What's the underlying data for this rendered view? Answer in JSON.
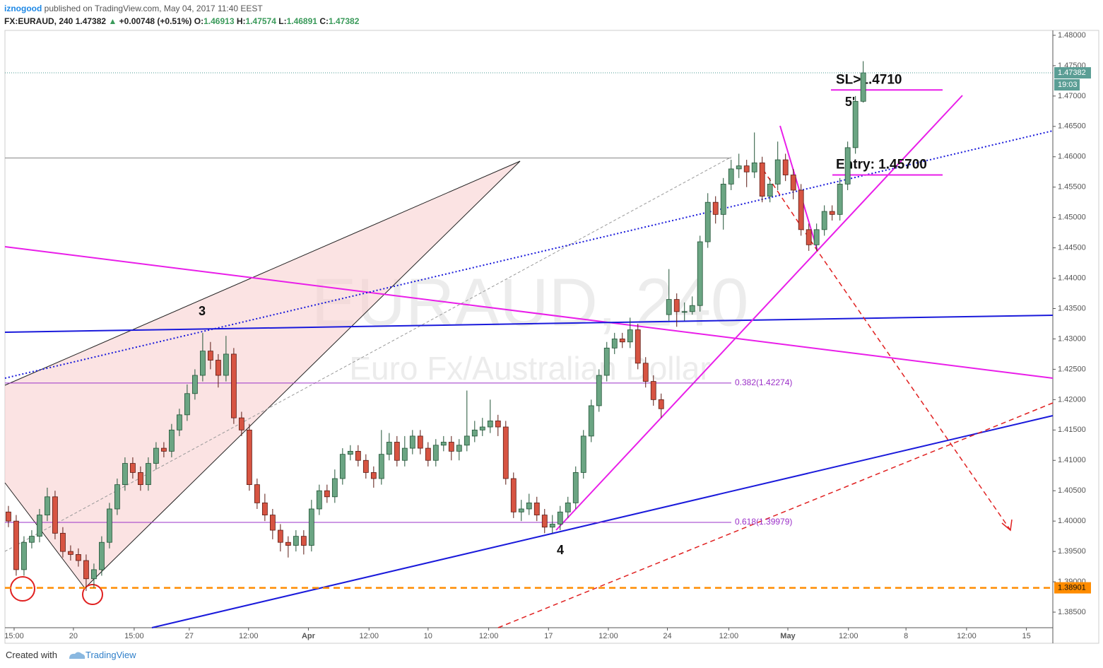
{
  "header": {
    "author": "iznogood",
    "published": "published on TradingView.com, May 04, 2017 11:40 EEST",
    "symbol": "FX:EURAUD, 240",
    "change": "+0.00748 (+0.51%)",
    "o": "O:",
    "h": "H:",
    "l": "L:",
    "c": "C:"
  },
  "footer": {
    "created": "Created with",
    "brand": "TradingView"
  },
  "chart_data": {
    "type": "candlestick",
    "watermark": "EURAUD, 240",
    "subtitle": "Euro Fx/Australian Dollar",
    "annotations": [
      "3",
      "4",
      "5'"
    ],
    "countdown": "19:03",
    "up_color": "#6ba583",
    "down_color": "#d75442",
    "ylim": [
      1.38244,
      1.48081
    ],
    "yticks": [
      {
        "value": 1.385,
        "label": "1.38500"
      },
      {
        "value": 1.39,
        "label": "1.39000"
      },
      {
        "value": 1.395,
        "label": "1.39500"
      },
      {
        "value": 1.4,
        "label": "1.40000"
      },
      {
        "value": 1.405,
        "label": "1.40500"
      },
      {
        "value": 1.41,
        "label": "1.41000"
      },
      {
        "value": 1.415,
        "label": "1.41500"
      },
      {
        "value": 1.42,
        "label": "1.42000"
      },
      {
        "value": 1.425,
        "label": "1.42500"
      },
      {
        "value": 1.43,
        "label": "1.43000"
      },
      {
        "value": 1.435,
        "label": "1.43500"
      },
      {
        "value": 1.44,
        "label": "1.44000"
      },
      {
        "value": 1.445,
        "label": "1.44500"
      },
      {
        "value": 1.45,
        "label": "1.45000"
      },
      {
        "value": 1.455,
        "label": "1.45500"
      },
      {
        "value": 1.46,
        "label": "1.46000"
      },
      {
        "value": 1.465,
        "label": "1.46500"
      },
      {
        "value": 1.47,
        "label": "1.47000"
      },
      {
        "value": 1.475,
        "label": "1.47500"
      },
      {
        "value": 1.48,
        "label": "1.48000"
      }
    ],
    "xlim": [
      -0.45,
      134.4
    ],
    "xticks": [
      {
        "value": 0.73,
        "label": "15:00"
      },
      {
        "value": 8.36,
        "label": "20"
      },
      {
        "value": 16.18,
        "label": "15:00"
      },
      {
        "value": 23.27,
        "label": "27"
      },
      {
        "value": 30.9,
        "label": "12:00"
      },
      {
        "value": 38.6,
        "label": "Apr"
      },
      {
        "value": 46.4,
        "label": "12:00"
      },
      {
        "value": 54,
        "label": "10"
      },
      {
        "value": 61.8,
        "label": "12:00"
      },
      {
        "value": 69.5,
        "label": "17"
      },
      {
        "value": 77.2,
        "label": "12:00"
      },
      {
        "value": 84.8,
        "label": "24"
      },
      {
        "value": 92.7,
        "label": "12:00"
      },
      {
        "value": 100.3,
        "label": "May"
      },
      {
        "value": 108.1,
        "label": "12:00"
      },
      {
        "value": 115.5,
        "label": "8"
      },
      {
        "value": 123.3,
        "label": "12:00"
      },
      {
        "value": 131,
        "label": "15"
      }
    ],
    "levels": [
      {
        "value": 1.4598,
        "color": "#888888"
      },
      {
        "value": 1.42274,
        "label": "0.382(1.42274)",
        "color": "#9b30c8"
      },
      {
        "value": 1.39979,
        "label": "0.618(1.39979)",
        "color": "#9b30c8"
      },
      {
        "value": 1.457,
        "label": "Entry: 1.45700",
        "color": "#e91ee9"
      },
      {
        "value": 1.471,
        "label": "SL>1.4710",
        "color": "#e91ee9"
      },
      {
        "value": 1.38901,
        "color": "#ff8c00"
      }
    ],
    "open": [
      1.4015,
      1.4,
      1.392,
      1.3965,
      1.3975,
      1.401,
      1.404,
      1.398,
      1.395,
      1.3945,
      1.3935,
      1.3905,
      1.392,
      1.3965,
      1.402,
      1.406,
      1.4095,
      1.408,
      1.406,
      1.4095,
      1.412,
      1.4115,
      1.415,
      1.4175,
      1.421,
      1.424,
      1.428,
      1.4265,
      1.424,
      1.4275,
      1.417,
      1.415,
      1.406,
      1.403,
      1.401,
      1.3985,
      1.3965,
      1.396,
      1.3975,
      1.396,
      1.402,
      1.405,
      1.404,
      1.407,
      1.411,
      1.4115,
      1.41,
      1.408,
      1.407,
      1.411,
      1.413,
      1.41,
      1.412,
      1.414,
      1.412,
      1.41,
      1.4125,
      1.413,
      1.4115,
      1.4125,
      1.414,
      1.415,
      1.4155,
      1.4165,
      1.4155,
      1.407,
      1.4015,
      1.402,
      1.403,
      1.401,
      1.399,
      1.3995,
      1.4015,
      1.403,
      1.408,
      1.414,
      1.419,
      1.424,
      1.4285,
      1.43,
      1.4295,
      1.4315,
      1.426,
      1.423,
      1.42,
      1.434,
      1.4365,
      1.4345,
      1.4345,
      1.4355,
      1.446,
      1.4525,
      1.4505,
      1.4555,
      1.458,
      1.4585,
      1.4575,
      1.459,
      1.4535,
      1.4555,
      1.4595,
      1.457,
      1.4545,
      1.448,
      1.4455,
      1.448,
      1.451,
      1.4505,
      1.4555,
      1.4615,
      1.46913
    ],
    "high": [
      1.4025,
      1.401,
      1.3975,
      1.3985,
      1.402,
      1.4055,
      1.405,
      1.399,
      1.396,
      1.3955,
      1.3945,
      1.393,
      1.3975,
      1.403,
      1.407,
      1.4105,
      1.4105,
      1.409,
      1.4105,
      1.413,
      1.413,
      1.416,
      1.4185,
      1.4225,
      1.425,
      1.431,
      1.4295,
      1.4275,
      1.4305,
      1.4285,
      1.418,
      1.416,
      1.407,
      1.4045,
      1.402,
      1.3995,
      1.3975,
      1.3985,
      1.3985,
      1.4035,
      1.406,
      1.406,
      1.4085,
      1.412,
      1.4125,
      1.4125,
      1.411,
      1.409,
      1.415,
      1.4145,
      1.414,
      1.414,
      1.415,
      1.415,
      1.413,
      1.4135,
      1.414,
      1.414,
      1.4135,
      1.4215,
      1.4165,
      1.417,
      1.42,
      1.4175,
      1.4165,
      1.408,
      1.4035,
      1.4045,
      1.404,
      1.402,
      1.401,
      1.4025,
      1.404,
      1.409,
      1.415,
      1.42,
      1.425,
      1.4295,
      1.431,
      1.431,
      1.4335,
      1.4325,
      1.427,
      1.424,
      1.421,
      1.4415,
      1.4375,
      1.436,
      1.437,
      1.447,
      1.454,
      1.4535,
      1.4565,
      1.4595,
      1.4605,
      1.4595,
      1.464,
      1.46,
      1.4565,
      1.4625,
      1.4605,
      1.458,
      1.4555,
      1.449,
      1.449,
      1.452,
      1.452,
      1.4565,
      1.4625,
      1.47,
      1.47574
    ],
    "low": [
      1.399,
      1.391,
      1.391,
      1.3955,
      1.3965,
      1.4,
      1.397,
      1.394,
      1.3935,
      1.3925,
      1.3885,
      1.389,
      1.391,
      1.3955,
      1.401,
      1.405,
      1.407,
      1.405,
      1.405,
      1.4085,
      1.4105,
      1.4105,
      1.414,
      1.4165,
      1.42,
      1.423,
      1.425,
      1.422,
      1.423,
      1.416,
      1.414,
      1.405,
      1.402,
      1.4,
      1.397,
      1.395,
      1.394,
      1.395,
      1.3945,
      1.395,
      1.401,
      1.403,
      1.403,
      1.406,
      1.41,
      1.409,
      1.407,
      1.4055,
      1.406,
      1.41,
      1.409,
      1.409,
      1.411,
      1.411,
      1.409,
      1.409,
      1.4115,
      1.41,
      1.41,
      1.4115,
      1.413,
      1.414,
      1.4145,
      1.414,
      1.406,
      1.4005,
      1.4,
      1.401,
      1.4,
      1.398,
      1.398,
      1.3985,
      1.4005,
      1.402,
      1.407,
      1.413,
      1.418,
      1.423,
      1.4275,
      1.4285,
      1.4285,
      1.425,
      1.422,
      1.419,
      1.417,
      1.433,
      1.432,
      1.433,
      1.434,
      1.4345,
      1.445,
      1.449,
      1.448,
      1.4545,
      1.4565,
      1.455,
      1.4565,
      1.4525,
      1.4525,
      1.4545,
      1.456,
      1.453,
      1.447,
      1.4445,
      1.4445,
      1.447,
      1.4495,
      1.4495,
      1.4545,
      1.4605,
      1.46891
    ],
    "close": [
      1.4,
      1.392,
      1.3965,
      1.3975,
      1.401,
      1.404,
      1.398,
      1.395,
      1.3945,
      1.3935,
      1.3905,
      1.392,
      1.3965,
      1.402,
      1.406,
      1.4095,
      1.408,
      1.406,
      1.4095,
      1.412,
      1.4115,
      1.415,
      1.4175,
      1.421,
      1.424,
      1.428,
      1.4265,
      1.424,
      1.4275,
      1.417,
      1.415,
      1.406,
      1.403,
      1.401,
      1.3985,
      1.3965,
      1.396,
      1.3975,
      1.396,
      1.402,
      1.405,
      1.404,
      1.407,
      1.411,
      1.4115,
      1.41,
      1.408,
      1.407,
      1.411,
      1.413,
      1.41,
      1.412,
      1.414,
      1.412,
      1.41,
      1.4125,
      1.413,
      1.4115,
      1.4125,
      1.414,
      1.415,
      1.4155,
      1.4165,
      1.4155,
      1.407,
      1.4015,
      1.402,
      1.403,
      1.401,
      1.399,
      1.3995,
      1.4015,
      1.403,
      1.408,
      1.414,
      1.419,
      1.424,
      1.4285,
      1.43,
      1.4295,
      1.4315,
      1.426,
      1.423,
      1.42,
      1.4185,
      1.4365,
      1.4345,
      1.4345,
      1.4355,
      1.446,
      1.4525,
      1.4505,
      1.4555,
      1.458,
      1.4585,
      1.4575,
      1.459,
      1.4535,
      1.4555,
      1.4595,
      1.457,
      1.4545,
      1.448,
      1.4455,
      1.448,
      1.451,
      1.4505,
      1.4555,
      1.4615,
      1.46913,
      1.47382
    ]
  }
}
